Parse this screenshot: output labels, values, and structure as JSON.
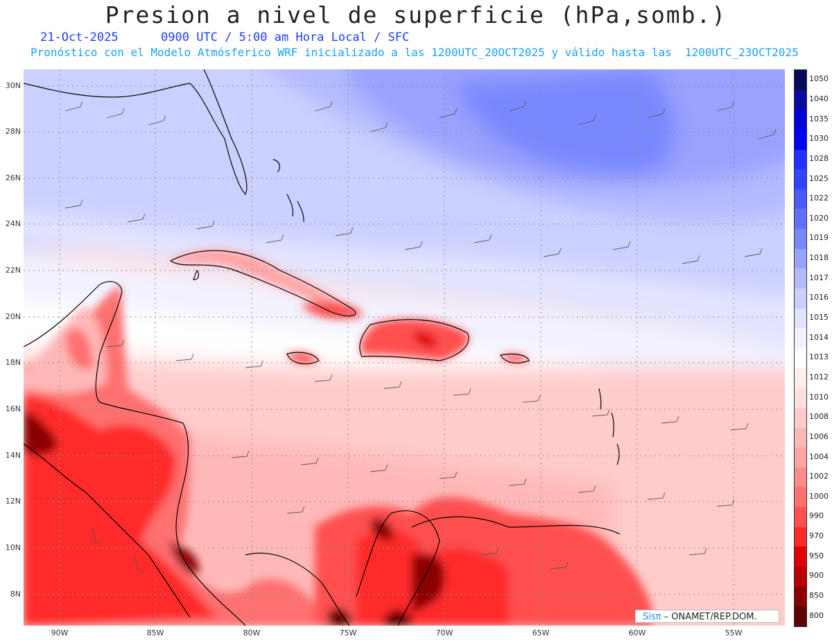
{
  "header": {
    "title": "Presion a nivel de superficie (hPa,somb.)",
    "date": "21-Oct-2025",
    "valid_time": "0900 UTC / 5:00 am Hora Local / SFC",
    "forecast_note": "Pronóstico con el Modelo Atmósferico WRF inicializado a las 1200UTC_20OCT2025 y válido hasta las  1200UTC_23OCT2025"
  },
  "map": {
    "lat_labels": [
      "30N",
      "28N",
      "26N",
      "24N",
      "22N",
      "20N",
      "18N",
      "16N",
      "14N",
      "12N",
      "10N",
      "8N"
    ],
    "lon_labels": [
      "90W",
      "85W",
      "80W",
      "75W",
      "70W",
      "65W",
      "60W",
      "55W"
    ]
  },
  "colorbar": {
    "levels": [
      "1050",
      "1040",
      "1035",
      "1030",
      "1028",
      "1025",
      "1022",
      "1020",
      "1019",
      "1018",
      "1017",
      "1016",
      "1015",
      "1014",
      "1013",
      "1012",
      "1010",
      "1008",
      "1006",
      "1004",
      "1002",
      "1000",
      "990",
      "970",
      "950",
      "900",
      "850",
      "800"
    ],
    "colors": [
      "#0a0a5a",
      "#0a0aa0",
      "#0000d8",
      "#0000ff",
      "#2233ff",
      "#3344ff",
      "#4a5aff",
      "#6070ff",
      "#7a88ff",
      "#9aa2ff",
      "#b4baff",
      "#ccd0ff",
      "#e2e4ff",
      "#f2f2ff",
      "#ffffff",
      "#ffeeee",
      "#ffdede",
      "#ffcccc",
      "#ffb8b8",
      "#ffa4a4",
      "#ff8c8c",
      "#ff7070",
      "#ff5050",
      "#ff2a2a",
      "#e00000",
      "#b80000",
      "#8a0000",
      "#600000"
    ]
  },
  "credit": {
    "brand_a": "Sis",
    "brand_pi": "π",
    "text": " – ONAMET/REP.DOM."
  }
}
